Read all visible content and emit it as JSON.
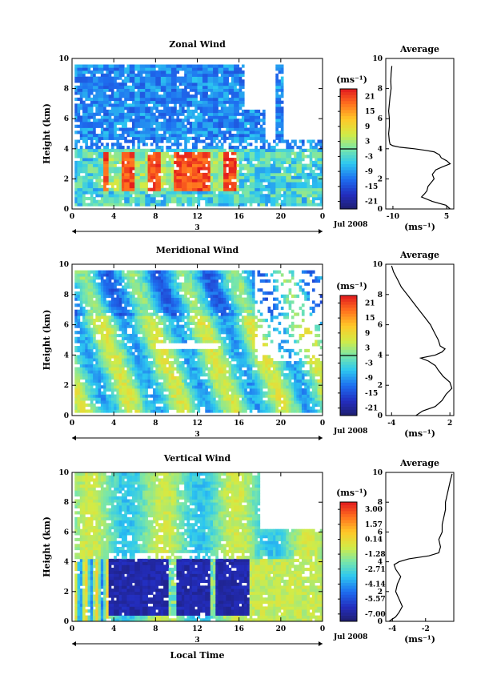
{
  "chart_data": [
    {
      "type": "heatmap",
      "title": "Zonal Wind",
      "xlabel": "",
      "ylabel": "Height (km)",
      "xlim": [
        0,
        24
      ],
      "ylim": [
        0,
        10
      ],
      "x_ticks": [
        "0",
        "4",
        "8",
        "12",
        "16",
        "20",
        "0"
      ],
      "y_ticks": [
        "0",
        "2",
        "4",
        "6",
        "8",
        "10"
      ],
      "day_label": "3",
      "date_label": "Jul 2008",
      "colorbar": {
        "unit": "(ms⁻¹)",
        "ticks": [
          "21",
          "15",
          "9",
          "3",
          "-3",
          "-9",
          "-15",
          "-21"
        ],
        "min": -24,
        "max": 24,
        "zero_line": 0
      },
      "profile": {
        "title": "Average",
        "xlabel": "(ms⁻¹)",
        "x_ticks": [
          -10,
          5
        ],
        "xlim": [
          -12,
          7
        ],
        "y_ticks": [
          "0",
          "2",
          "4",
          "6",
          "8",
          "10"
        ],
        "height": [
          0,
          0.25,
          0.5,
          0.8,
          1.0,
          1.2,
          1.5,
          1.8,
          2.0,
          2.3,
          2.6,
          2.8,
          3.0,
          3.2,
          3.4,
          3.6,
          3.8,
          3.9,
          4.0,
          4.1,
          4.2,
          4.3,
          4.5,
          5.0,
          5.5,
          6.0,
          6.5,
          7.0,
          7.5,
          8.0,
          8.5,
          9.0,
          9.5
        ],
        "value": [
          6.0,
          4.8,
          1.0,
          -2.0,
          -1.2,
          -0.5,
          -0.2,
          0.8,
          1.5,
          1.0,
          2.0,
          3.8,
          6.0,
          5.0,
          3.5,
          3.0,
          1.5,
          -1.0,
          -4.0,
          -8.0,
          -10.0,
          -10.8,
          -11.0,
          -11.2,
          -11.0,
          -11.0,
          -11.2,
          -11.0,
          -10.8,
          -10.5,
          -10.6,
          -10.5,
          -10.3
        ]
      }
    },
    {
      "type": "heatmap",
      "title": "Meridional Wind",
      "xlabel": "",
      "ylabel": "Height (km)",
      "xlim": [
        0,
        24
      ],
      "ylim": [
        0,
        10
      ],
      "x_ticks": [
        "0",
        "4",
        "8",
        "12",
        "16",
        "20",
        "0"
      ],
      "y_ticks": [
        "0",
        "2",
        "4",
        "6",
        "8",
        "10"
      ],
      "day_label": "3",
      "date_label": "Jul 2008",
      "colorbar": {
        "unit": "(ms⁻¹)",
        "ticks": [
          "21",
          "15",
          "9",
          "3",
          "-3",
          "-9",
          "-15",
          "-21"
        ],
        "min": -24,
        "max": 24,
        "zero_line": 0
      },
      "profile": {
        "title": "Average",
        "xlabel": "(ms⁻¹)",
        "x_ticks": [
          -4,
          2
        ],
        "xlim": [
          -4.6,
          2.4
        ],
        "y_ticks": [
          "0",
          "2",
          "4",
          "6",
          "8",
          "10"
        ],
        "height": [
          0,
          0.3,
          0.6,
          1.0,
          1.4,
          1.8,
          2.2,
          2.6,
          3.0,
          3.3,
          3.6,
          3.8,
          4.0,
          4.2,
          4.4,
          4.6,
          5.0,
          5.5,
          6.0,
          6.5,
          7.0,
          7.5,
          8.0,
          8.5,
          9.0,
          9.5,
          9.9
        ],
        "value": [
          -1.5,
          -0.8,
          0.5,
          1.2,
          1.6,
          2.2,
          2.0,
          1.3,
          0.8,
          0.5,
          -0.2,
          -1.0,
          0.5,
          1.2,
          1.5,
          1.0,
          0.8,
          0.4,
          0.0,
          -0.6,
          -1.2,
          -1.8,
          -2.4,
          -3.0,
          -3.4,
          -3.8,
          -4.0
        ]
      }
    },
    {
      "type": "heatmap",
      "title": "Vertical Wind",
      "xlabel": "Local Time",
      "ylabel": "Height (km)",
      "xlim": [
        0,
        24
      ],
      "ylim": [
        0,
        10
      ],
      "x_ticks": [
        "0",
        "4",
        "8",
        "12",
        "16",
        "20",
        "0"
      ],
      "y_ticks": [
        "0",
        "2",
        "4",
        "6",
        "8",
        "10"
      ],
      "day_label": "3",
      "date_label": "Jul 2008",
      "colorbar": {
        "unit": "(ms⁻¹)",
        "ticks": [
          "3.00",
          "1.57",
          "0.14",
          "-1.28",
          "-2.71",
          "-4.14",
          "-5.57",
          "-7.00"
        ],
        "min": -7.7,
        "max": 3.7
      },
      "profile": {
        "title": "Average",
        "xlabel": "(ms⁻¹)",
        "x_ticks": [
          -4,
          -2
        ],
        "xlim": [
          -4.4,
          -0.3
        ],
        "y_ticks": [
          "0",
          "2",
          "4",
          "6",
          "8",
          "10"
        ],
        "height": [
          0,
          0.3,
          0.6,
          1.0,
          1.5,
          2.0,
          2.5,
          3.0,
          3.5,
          3.8,
          4.0,
          4.2,
          4.4,
          4.6,
          5.0,
          5.5,
          6.0,
          6.5,
          7.0,
          7.5,
          8.0,
          8.5,
          9.0,
          9.5,
          9.9
        ],
        "value": [
          -4.2,
          -3.8,
          -3.6,
          -3.4,
          -3.6,
          -3.8,
          -3.7,
          -3.5,
          -3.8,
          -3.9,
          -3.6,
          -3.0,
          -1.8,
          -1.2,
          -1.1,
          -1.2,
          -1.0,
          -1.0,
          -0.9,
          -0.8,
          -0.8,
          -0.7,
          -0.6,
          -0.5,
          -0.4
        ]
      }
    }
  ]
}
